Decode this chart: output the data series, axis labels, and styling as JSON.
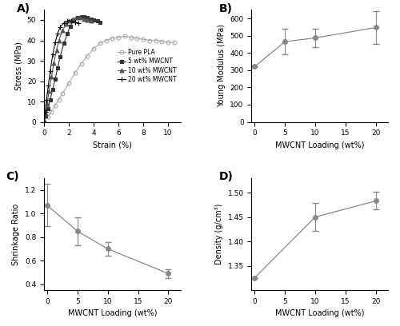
{
  "panel_A": {
    "pure_pla": {
      "strain": [
        0,
        0.3,
        0.6,
        0.9,
        1.2,
        1.5,
        2.0,
        2.5,
        3.0,
        3.5,
        4.0,
        4.5,
        5.0,
        5.5,
        6.0,
        6.5,
        7.0,
        7.5,
        8.0,
        8.5,
        9.0,
        9.5,
        10.0,
        10.5
      ],
      "stress": [
        0,
        2.5,
        5.0,
        8.0,
        11.0,
        14.0,
        19.0,
        24.0,
        28.5,
        32.5,
        36.0,
        38.5,
        40.0,
        41.0,
        41.5,
        42.0,
        41.5,
        41.0,
        40.5,
        40.0,
        40.0,
        39.5,
        39.0,
        39.0
      ],
      "marker": "o",
      "color": "#aaaaaa",
      "label": "Pure PLA",
      "markersize": 3.5,
      "markerfacecolor": "none"
    },
    "cnt5": {
      "strain": [
        0,
        0.15,
        0.3,
        0.5,
        0.7,
        0.9,
        1.1,
        1.3,
        1.6,
        1.9,
        2.1,
        2.4,
        2.7,
        3.0,
        3.2,
        3.5,
        3.8,
        4.0,
        4.3,
        4.5
      ],
      "stress": [
        0,
        3.0,
        6.5,
        11.0,
        16.0,
        21.0,
        26.5,
        32.0,
        38.5,
        43.5,
        47.0,
        49.5,
        51.0,
        51.5,
        51.5,
        51.0,
        50.5,
        50.0,
        49.5,
        49.0
      ],
      "marker": "s",
      "color": "#333333",
      "label": "5 wt% MWCNT",
      "markersize": 3.5,
      "markerfacecolor": "#333333"
    },
    "cnt10": {
      "strain": [
        0,
        0.12,
        0.25,
        0.4,
        0.6,
        0.8,
        1.0,
        1.2,
        1.5,
        1.8,
        2.0,
        2.3,
        2.6,
        2.9,
        3.2,
        3.5,
        3.8
      ],
      "stress": [
        0,
        4.0,
        9.0,
        15.0,
        22.0,
        29.0,
        35.0,
        40.0,
        45.0,
        48.0,
        49.5,
        50.5,
        51.0,
        51.0,
        50.5,
        50.0,
        49.5
      ],
      "marker": "^",
      "color": "#555555",
      "label": "10 wt% MWCNT",
      "markersize": 3.5,
      "markerfacecolor": "#555555"
    },
    "cnt20": {
      "strain": [
        0,
        0.1,
        0.2,
        0.35,
        0.5,
        0.7,
        0.9,
        1.1,
        1.3,
        1.6,
        1.9,
        2.2,
        2.5,
        2.8
      ],
      "stress": [
        0,
        5.0,
        11.0,
        18.0,
        25.0,
        33.0,
        39.0,
        43.5,
        46.5,
        48.5,
        49.5,
        49.5,
        49.0,
        48.5
      ],
      "marker": "+",
      "color": "#111111",
      "label": "20 wt% MWCNT",
      "markersize": 5,
      "markerfacecolor": "#111111"
    },
    "xlabel": "Strain (%)",
    "ylabel": "Stress (MPa)",
    "xlim": [
      0,
      11
    ],
    "ylim": [
      0,
      55
    ],
    "xticks": [
      0,
      2,
      4,
      6,
      8,
      10
    ],
    "yticks": [
      0,
      10,
      20,
      30,
      40,
      50
    ]
  },
  "panel_B": {
    "x": [
      0,
      5,
      10,
      20
    ],
    "y": [
      320,
      465,
      487,
      547
    ],
    "yerr": [
      0,
      75,
      55,
      95
    ],
    "xlabel": "MWCNT Loading (wt%)",
    "ylabel": "Young Modulus (MPa)",
    "xlim": [
      -0.5,
      22
    ],
    "ylim": [
      0,
      650
    ],
    "xticks": [
      0,
      5,
      10,
      15,
      20
    ],
    "yticks": [
      0,
      100,
      200,
      300,
      400,
      500,
      600
    ],
    "color": "#888888",
    "marker": "o",
    "markersize": 4
  },
  "panel_C": {
    "x": [
      0,
      5,
      10,
      20
    ],
    "y": [
      1.07,
      0.85,
      0.7,
      0.49
    ],
    "yerr": [
      0.18,
      0.12,
      0.055,
      0.035
    ],
    "xlabel": "MWCNT Loading (wt%)",
    "ylabel": "Shrinkage Ratio",
    "xlim": [
      -0.5,
      22
    ],
    "ylim": [
      0.35,
      1.3
    ],
    "xticks": [
      0,
      5,
      10,
      15,
      20
    ],
    "yticks": [
      0.4,
      0.6,
      0.8,
      1.0,
      1.2
    ],
    "color": "#888888",
    "marker": "o",
    "markersize": 4
  },
  "panel_D": {
    "x": [
      0,
      10,
      20
    ],
    "y": [
      1.325,
      1.45,
      1.483
    ],
    "yerr": [
      0.0,
      0.028,
      0.018
    ],
    "xlabel": "MWCNT Loading (wt%)",
    "ylabel": "Density (g/cm³)",
    "xlim": [
      -0.5,
      22
    ],
    "ylim": [
      1.3,
      1.53
    ],
    "xticks": [
      0,
      5,
      10,
      15,
      20
    ],
    "yticks": [
      1.35,
      1.4,
      1.45,
      1.5
    ],
    "color": "#888888",
    "marker": "o",
    "markersize": 4
  },
  "bg_color": "#ffffff",
  "text_color": "#000000",
  "line_color": "#888888"
}
